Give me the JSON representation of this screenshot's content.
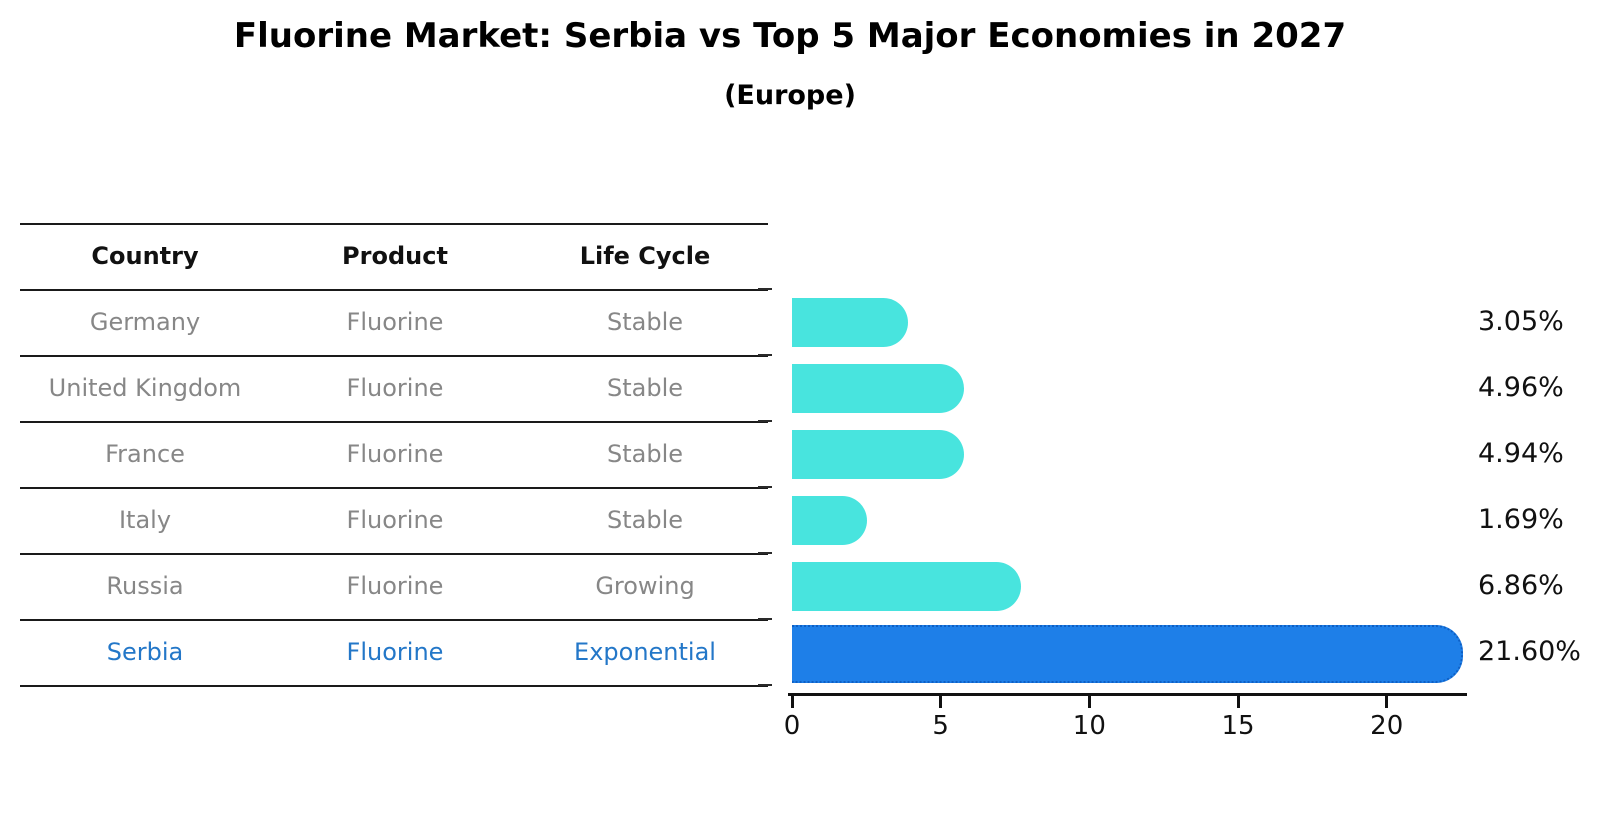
{
  "title": "Fluorine Market: Serbia vs Top 5 Major Economies in 2027",
  "subtitle": "(Europe)",
  "table": {
    "headers": [
      "Country",
      "Product",
      "Life Cycle"
    ],
    "rows": [
      {
        "country": "Germany",
        "product": "Fluorine",
        "life_cycle": "Stable",
        "highlighted": false
      },
      {
        "country": "United Kingdom",
        "product": "Fluorine",
        "life_cycle": "Stable",
        "highlighted": false
      },
      {
        "country": "France",
        "product": "Fluorine",
        "life_cycle": "Stable",
        "highlighted": false
      },
      {
        "country": "Italy",
        "product": "Fluorine",
        "life_cycle": "Stable",
        "highlighted": false
      },
      {
        "country": "Russia",
        "product": "Fluorine",
        "life_cycle": "Growing",
        "highlighted": false
      },
      {
        "country": "Serbia",
        "product": "Fluorine",
        "life_cycle": "Exponential",
        "highlighted": true
      }
    ]
  },
  "chart_data": {
    "type": "bar",
    "orientation": "horizontal",
    "title": "Fluorine Market: Serbia vs Top 5 Major Economies in 2027",
    "subtitle": "(Europe)",
    "categories": [
      "Germany",
      "United Kingdom",
      "France",
      "Italy",
      "Russia",
      "Serbia"
    ],
    "values": [
      3.05,
      4.96,
      4.94,
      1.69,
      6.86,
      21.6
    ],
    "value_labels": [
      "3.05%",
      "4.96%",
      "4.94%",
      "1.69%",
      "6.86%",
      "21.60%"
    ],
    "highlight_index": 5,
    "x_ticks": [
      0,
      5,
      10,
      15,
      20
    ],
    "xlim": [
      0,
      22.7
    ],
    "grid": false,
    "legend": false,
    "colors": {
      "bar_default": "#48E4DE",
      "bar_highlight": "#1E7FE8",
      "bar_highlight_border": "#0E5FC4",
      "row_text": "#878787",
      "highlight_text": "#2377C8",
      "axis": "#111111"
    }
  }
}
